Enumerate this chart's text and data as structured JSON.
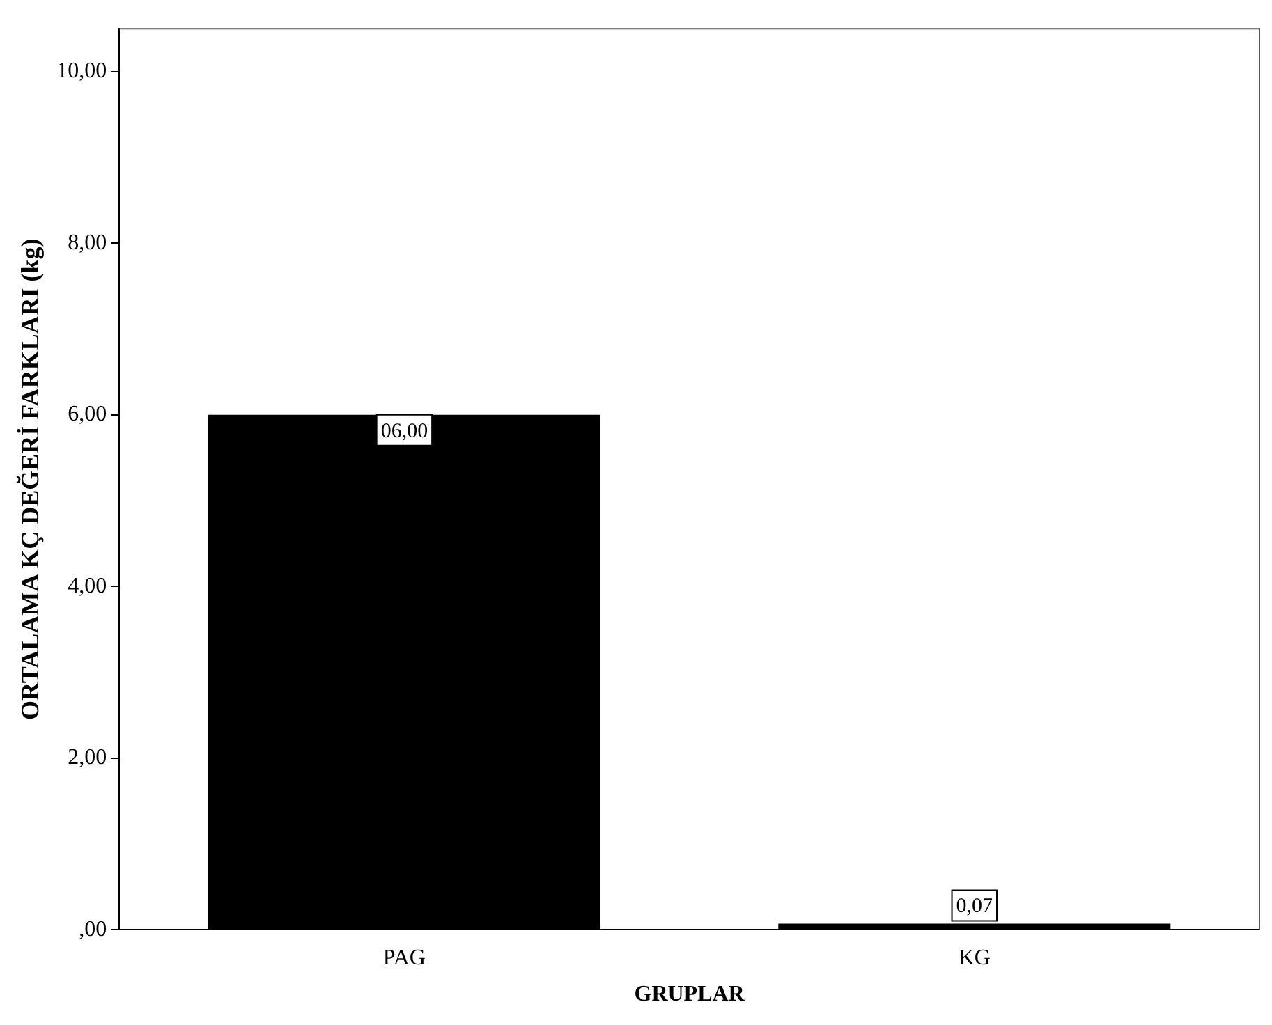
{
  "chart_data": {
    "type": "bar",
    "xlabel": "GRUPLAR",
    "ylabel": "ORTALAMA KÇ DEĞERİ FARKLARI (kg)",
    "categories": [
      "PAG",
      "KG"
    ],
    "values": [
      6.0,
      0.07
    ],
    "value_labels": [
      "06,00",
      "0,07"
    ],
    "color": "#000000",
    "ylim": [
      0,
      10.5
    ],
    "yticks": [
      {
        "value": 0,
        "label": ",00"
      },
      {
        "value": 2,
        "label": "2,00"
      },
      {
        "value": 4,
        "label": "4,00"
      },
      {
        "value": 6,
        "label": "6,00"
      },
      {
        "value": 8,
        "label": "8,00"
      },
      {
        "value": 10,
        "label": "10,00"
      }
    ],
    "grid": false,
    "legend": false
  }
}
